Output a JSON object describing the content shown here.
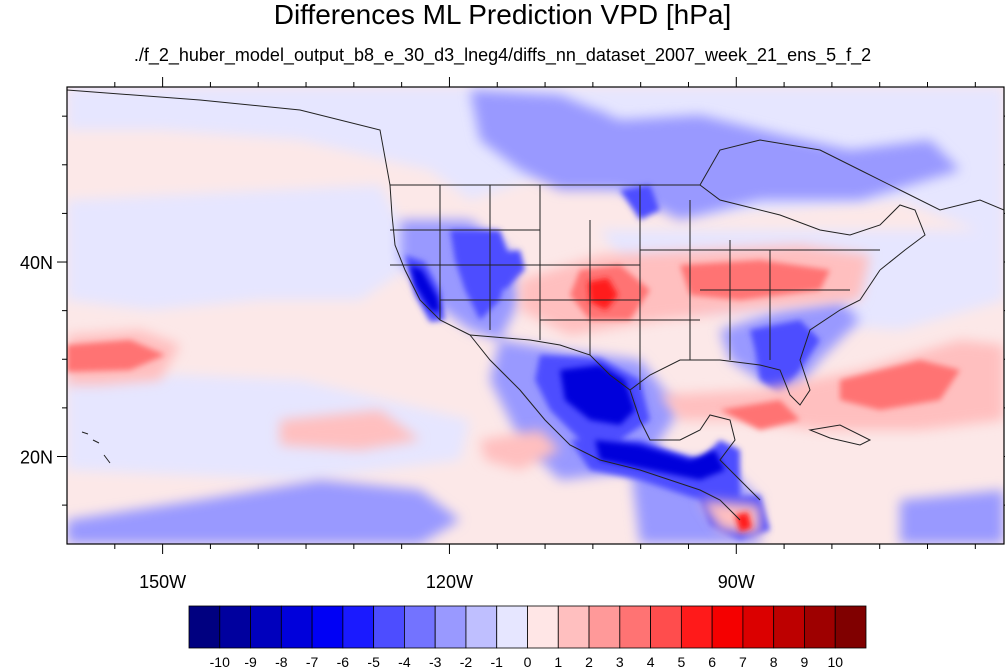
{
  "title": "Differences ML Prediction VPD [hPa]",
  "subtitle": "./f_2_huber_model_output_b8_e_30_d3_lneg4/diffs_nn_dataset_2007_week_21_ens_5_f_2",
  "map": {
    "projection": "cylindrical equidistant",
    "lon_range": [
      -160,
      -62
    ],
    "lat_range": [
      11,
      58
    ],
    "lon_ticks": [
      {
        "value": -150,
        "label": "150W"
      },
      {
        "value": -120,
        "label": "120W"
      },
      {
        "value": -90,
        "label": "90W"
      }
    ],
    "lat_ticks": [
      {
        "value": 40,
        "label": "40N"
      },
      {
        "value": 20,
        "label": "20N"
      }
    ],
    "background_color": "#fce8e8"
  },
  "colorbar": {
    "labels": [
      "-10",
      "-9",
      "-8",
      "-7",
      "-6",
      "-5",
      "-4",
      "-3",
      "-2",
      "-1",
      "0",
      "1",
      "2",
      "3",
      "4",
      "5",
      "6",
      "7",
      "8",
      "9",
      "10"
    ],
    "colors": [
      "#000080",
      "#00009e",
      "#0000bd",
      "#0000db",
      "#0000f5",
      "#1a1aff",
      "#4d4dff",
      "#7373ff",
      "#9999ff",
      "#bfbfff",
      "#e6e6ff",
      "#ffe6e6",
      "#ffbfbf",
      "#ff9999",
      "#ff7373",
      "#ff4d4d",
      "#ff1a1a",
      "#f50000",
      "#db0000",
      "#bd0000",
      "#9e0000",
      "#800000"
    ]
  }
}
